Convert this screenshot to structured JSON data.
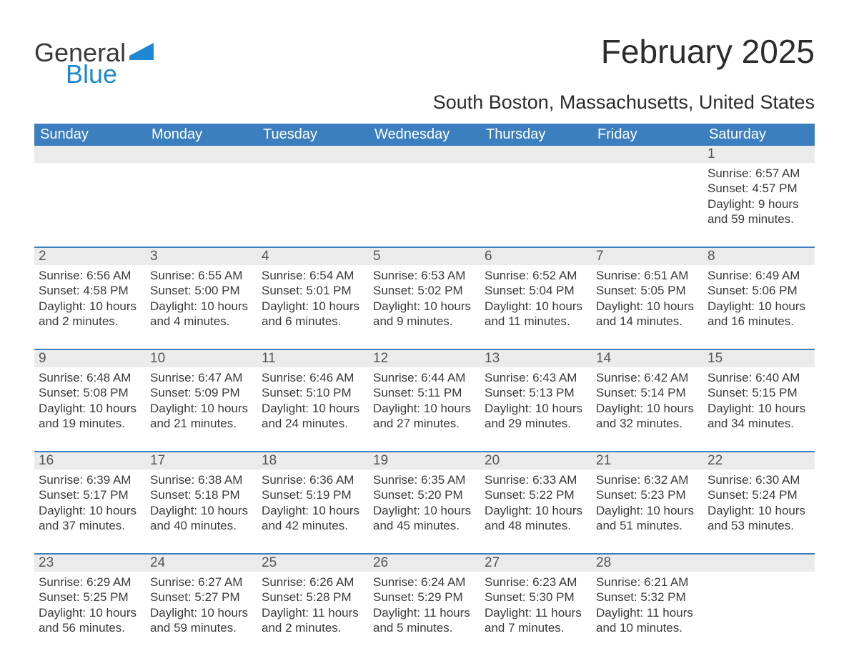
{
  "brand": {
    "word1": "General",
    "word2": "Blue",
    "accent_color": "#2f"
  },
  "colors": {
    "header_bg": "#3b7fbf",
    "header_text": "#ffffff",
    "daynum_bg": "#ebebeb",
    "daynum_border": "#3b7fbf",
    "text": "#3a3a3a",
    "logo_blue": "#1e88d2"
  },
  "title": "February 2025",
  "subtitle": "South Boston, Massachusetts, United States",
  "week_header": [
    "Sunday",
    "Monday",
    "Tuesday",
    "Wednesday",
    "Thursday",
    "Friday",
    "Saturday"
  ],
  "weeks": [
    [
      null,
      null,
      null,
      null,
      null,
      null,
      {
        "n": "1",
        "sunrise": "6:57 AM",
        "sunset": "4:57 PM",
        "daylight": "9 hours and 59 minutes."
      }
    ],
    [
      {
        "n": "2",
        "sunrise": "6:56 AM",
        "sunset": "4:58 PM",
        "daylight": "10 hours and 2 minutes."
      },
      {
        "n": "3",
        "sunrise": "6:55 AM",
        "sunset": "5:00 PM",
        "daylight": "10 hours and 4 minutes."
      },
      {
        "n": "4",
        "sunrise": "6:54 AM",
        "sunset": "5:01 PM",
        "daylight": "10 hours and 6 minutes."
      },
      {
        "n": "5",
        "sunrise": "6:53 AM",
        "sunset": "5:02 PM",
        "daylight": "10 hours and 9 minutes."
      },
      {
        "n": "6",
        "sunrise": "6:52 AM",
        "sunset": "5:04 PM",
        "daylight": "10 hours and 11 minutes."
      },
      {
        "n": "7",
        "sunrise": "6:51 AM",
        "sunset": "5:05 PM",
        "daylight": "10 hours and 14 minutes."
      },
      {
        "n": "8",
        "sunrise": "6:49 AM",
        "sunset": "5:06 PM",
        "daylight": "10 hours and 16 minutes."
      }
    ],
    [
      {
        "n": "9",
        "sunrise": "6:48 AM",
        "sunset": "5:08 PM",
        "daylight": "10 hours and 19 minutes."
      },
      {
        "n": "10",
        "sunrise": "6:47 AM",
        "sunset": "5:09 PM",
        "daylight": "10 hours and 21 minutes."
      },
      {
        "n": "11",
        "sunrise": "6:46 AM",
        "sunset": "5:10 PM",
        "daylight": "10 hours and 24 minutes."
      },
      {
        "n": "12",
        "sunrise": "6:44 AM",
        "sunset": "5:11 PM",
        "daylight": "10 hours and 27 minutes."
      },
      {
        "n": "13",
        "sunrise": "6:43 AM",
        "sunset": "5:13 PM",
        "daylight": "10 hours and 29 minutes."
      },
      {
        "n": "14",
        "sunrise": "6:42 AM",
        "sunset": "5:14 PM",
        "daylight": "10 hours and 32 minutes."
      },
      {
        "n": "15",
        "sunrise": "6:40 AM",
        "sunset": "5:15 PM",
        "daylight": "10 hours and 34 minutes."
      }
    ],
    [
      {
        "n": "16",
        "sunrise": "6:39 AM",
        "sunset": "5:17 PM",
        "daylight": "10 hours and 37 minutes."
      },
      {
        "n": "17",
        "sunrise": "6:38 AM",
        "sunset": "5:18 PM",
        "daylight": "10 hours and 40 minutes."
      },
      {
        "n": "18",
        "sunrise": "6:36 AM",
        "sunset": "5:19 PM",
        "daylight": "10 hours and 42 minutes."
      },
      {
        "n": "19",
        "sunrise": "6:35 AM",
        "sunset": "5:20 PM",
        "daylight": "10 hours and 45 minutes."
      },
      {
        "n": "20",
        "sunrise": "6:33 AM",
        "sunset": "5:22 PM",
        "daylight": "10 hours and 48 minutes."
      },
      {
        "n": "21",
        "sunrise": "6:32 AM",
        "sunset": "5:23 PM",
        "daylight": "10 hours and 51 minutes."
      },
      {
        "n": "22",
        "sunrise": "6:30 AM",
        "sunset": "5:24 PM",
        "daylight": "10 hours and 53 minutes."
      }
    ],
    [
      {
        "n": "23",
        "sunrise": "6:29 AM",
        "sunset": "5:25 PM",
        "daylight": "10 hours and 56 minutes."
      },
      {
        "n": "24",
        "sunrise": "6:27 AM",
        "sunset": "5:27 PM",
        "daylight": "10 hours and 59 minutes."
      },
      {
        "n": "25",
        "sunrise": "6:26 AM",
        "sunset": "5:28 PM",
        "daylight": "11 hours and 2 minutes."
      },
      {
        "n": "26",
        "sunrise": "6:24 AM",
        "sunset": "5:29 PM",
        "daylight": "11 hours and 5 minutes."
      },
      {
        "n": "27",
        "sunrise": "6:23 AM",
        "sunset": "5:30 PM",
        "daylight": "11 hours and 7 minutes."
      },
      {
        "n": "28",
        "sunrise": "6:21 AM",
        "sunset": "5:32 PM",
        "daylight": "11 hours and 10 minutes."
      },
      null
    ]
  ],
  "labels": {
    "sunrise": "Sunrise: ",
    "sunset": "Sunset: ",
    "daylight": "Daylight: "
  }
}
